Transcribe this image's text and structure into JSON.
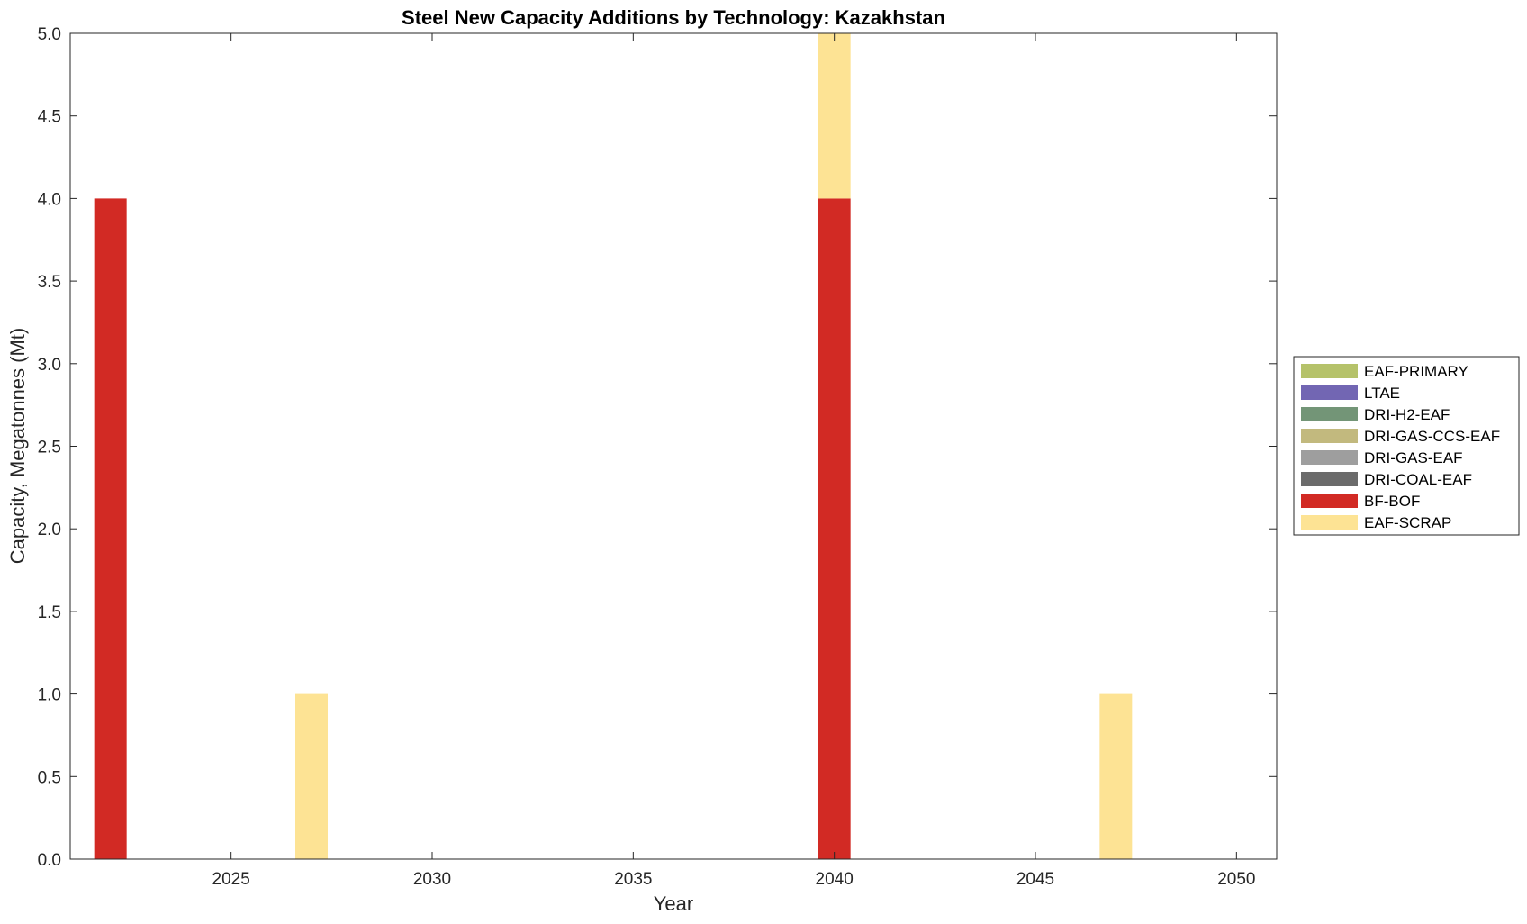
{
  "chart_data": {
    "type": "bar",
    "stacked": true,
    "title": "Steel New Capacity Additions by Technology: Kazakhstan",
    "xlabel": "Year",
    "ylabel": "Capacity, Megatonnes (Mt)",
    "xlim": [
      2021,
      2051
    ],
    "ylim": [
      0,
      5
    ],
    "xticks": [
      2025,
      2030,
      2035,
      2040,
      2045,
      2050
    ],
    "yticks": [
      "0.0",
      "0.5",
      "1.0",
      "1.5",
      "2.0",
      "2.5",
      "3.0",
      "3.5",
      "4.0",
      "4.5",
      "5.0"
    ],
    "grid": false,
    "legend_position": "right",
    "x": [
      2022,
      2027,
      2040,
      2047
    ],
    "series": [
      {
        "name": "EAF-PRIMARY",
        "color": "#b5c26a",
        "values": [
          0,
          0,
          0,
          0
        ]
      },
      {
        "name": "LTAE",
        "color": "#7266b3",
        "values": [
          0,
          0,
          0,
          0
        ]
      },
      {
        "name": "DRI-H2-EAF",
        "color": "#739577",
        "values": [
          0,
          0,
          0,
          0
        ]
      },
      {
        "name": "DRI-GAS-CCS-EAF",
        "color": "#c2b97e",
        "values": [
          0,
          0,
          0,
          0
        ]
      },
      {
        "name": "DRI-GAS-EAF",
        "color": "#9e9e9e",
        "values": [
          0,
          0,
          0,
          0
        ]
      },
      {
        "name": "DRI-COAL-EAF",
        "color": "#6b6b6b",
        "values": [
          0,
          0,
          0,
          0
        ]
      },
      {
        "name": "BF-BOF",
        "color": "#d22a24",
        "values": [
          4,
          0,
          4,
          0
        ]
      },
      {
        "name": "EAF-SCRAP",
        "color": "#fde394",
        "values": [
          0,
          1,
          1,
          1
        ]
      }
    ]
  }
}
